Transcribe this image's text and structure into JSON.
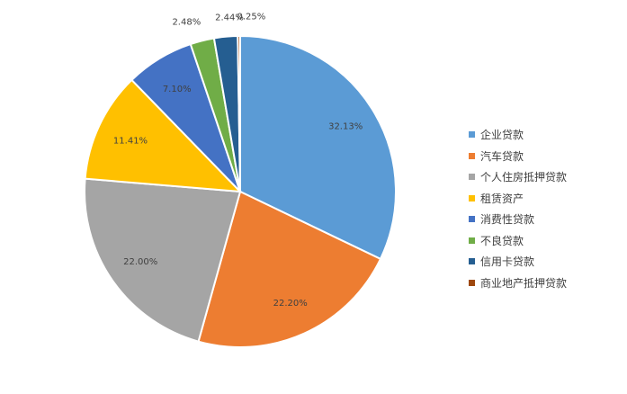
{
  "chart_data": {
    "type": "pie",
    "title": "",
    "slices": [
      {
        "name": "企业贷款",
        "value": 32.13,
        "label": "32.13%",
        "color": "#5B9BD5"
      },
      {
        "name": "汽车贷款",
        "value": 22.2,
        "label": "22.20%",
        "color": "#ED7D31"
      },
      {
        "name": "个人住房抵押贷款",
        "value": 22.0,
        "label": "22.00%",
        "color": "#A5A5A5"
      },
      {
        "name": "租赁资产",
        "value": 11.41,
        "label": "11.41%",
        "color": "#FFC000"
      },
      {
        "name": "消费性贷款",
        "value": 7.1,
        "label": "7.10%",
        "color": "#4472C4"
      },
      {
        "name": "不良贷款",
        "value": 2.48,
        "label": "2.48%",
        "color": "#70AD47"
      },
      {
        "name": "信用卡贷款",
        "value": 2.44,
        "label": "2.44%",
        "color": "#255E91"
      },
      {
        "name": "商业地产抵押贷款",
        "value": 0.25,
        "label": "0.25%",
        "color": "#9E480E"
      }
    ],
    "start": "12 o'clock",
    "direction": "clockwise",
    "legend": "right"
  }
}
